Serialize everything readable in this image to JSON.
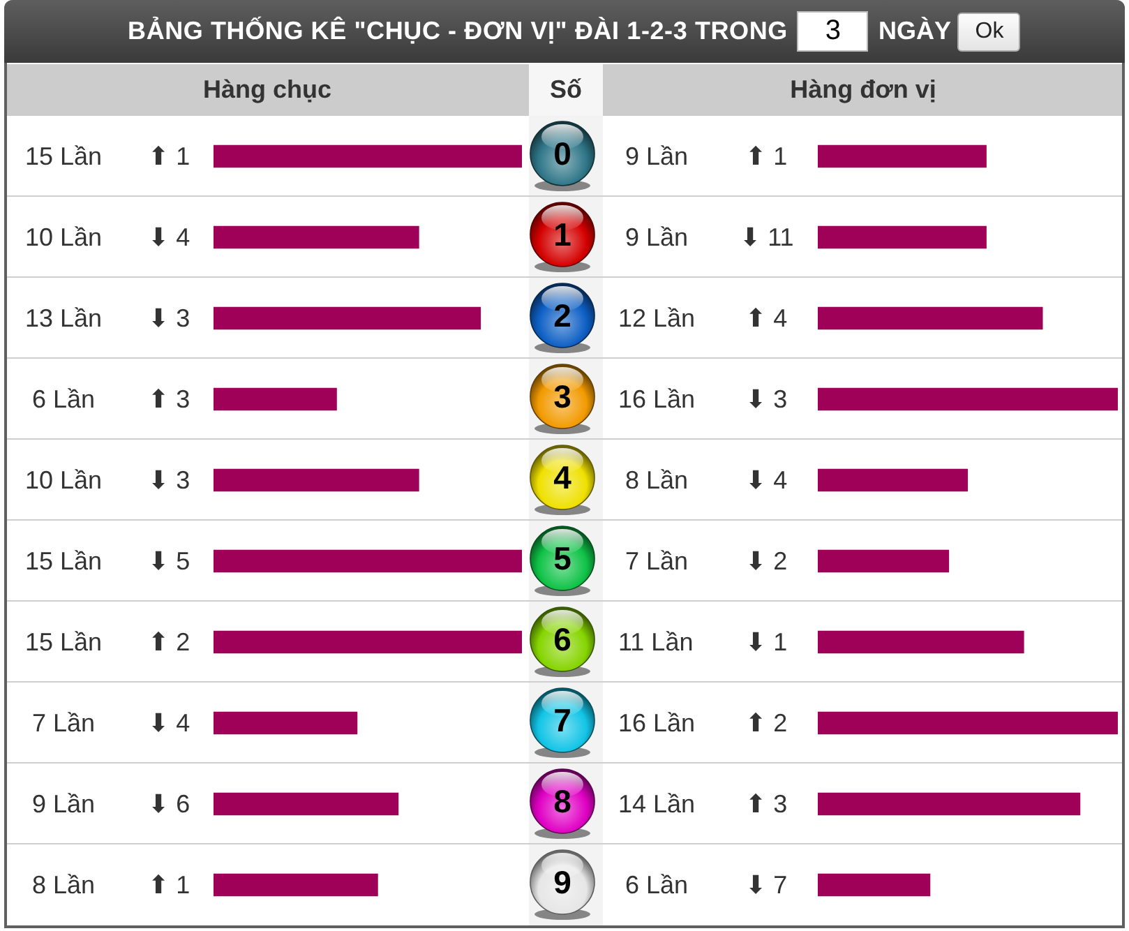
{
  "chart_data": [
    {
      "type": "other",
      "title": "BẢNG THỐNG KÊ \"CHỤC - ĐƠN VỊ\" ĐÀI 1-2-3 TRONG",
      "annotations": [
        "3",
        "NGÀY",
        "Ok"
      ]
    },
    {
      "type": "bar",
      "orientation": "horizontal",
      "title": "Hàng chục",
      "ylabel": "Số",
      "categories": [
        "0",
        "1",
        "2",
        "3",
        "4",
        "5",
        "6",
        "7",
        "8",
        "9"
      ],
      "values": [
        15,
        10,
        13,
        6,
        10,
        15,
        15,
        7,
        9,
        8
      ],
      "value_labels": [
        "15 Lần",
        "10 Lần",
        "13 Lần",
        "6 Lần",
        "10 Lần",
        "15 Lần",
        "15 Lần",
        "7 Lần",
        "9 Lần",
        "8 Lần"
      ],
      "color": "#9f0058",
      "tick_labels": "y",
      "annotations": [
        "⬆ 1",
        "⬇ 4",
        "⬇ 3",
        "⬆ 3",
        "⬇ 3",
        "⬇ 5",
        "⬆ 2",
        "⬇ 4",
        "⬇ 6",
        "⬆ 1"
      ]
    },
    {
      "type": "bar",
      "orientation": "horizontal",
      "title": "Hàng đơn vị",
      "categories": [
        "0",
        "1",
        "2",
        "3",
        "4",
        "5",
        "6",
        "7",
        "8",
        "9"
      ],
      "values": [
        9,
        9,
        12,
        16,
        8,
        7,
        11,
        16,
        14,
        6
      ],
      "value_labels": [
        "9 Lần",
        "9 Lần",
        "12 Lần",
        "16 Lần",
        "8 Lần",
        "7 Lần",
        "11 Lần",
        "16 Lần",
        "14 Lần",
        "6 Lần"
      ],
      "color": "#9f0058",
      "tick_labels": false,
      "annotations": [
        "⬆ 1",
        "⬇ 11",
        "⬆ 4",
        "⬇ 3",
        "⬇ 4",
        "⬇ 2",
        "⬇ 1",
        "⬆ 2",
        "⬆ 3",
        "⬇ 7"
      ]
    }
  ]
}
